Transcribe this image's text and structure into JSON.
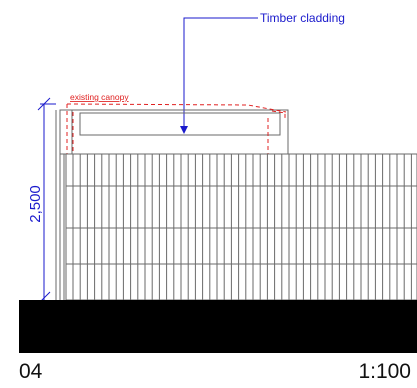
{
  "annotations": {
    "material_label": "Timber cladding",
    "canopy_label": "existing canopy",
    "dimension_label": "2,500"
  },
  "footer": {
    "view_number": "04",
    "scale": "1:100"
  },
  "colors": {
    "annotation_blue": "#1a1acc",
    "existing_red": "#e02020",
    "line_gray": "#6a6a6a",
    "ground": "#000000"
  }
}
